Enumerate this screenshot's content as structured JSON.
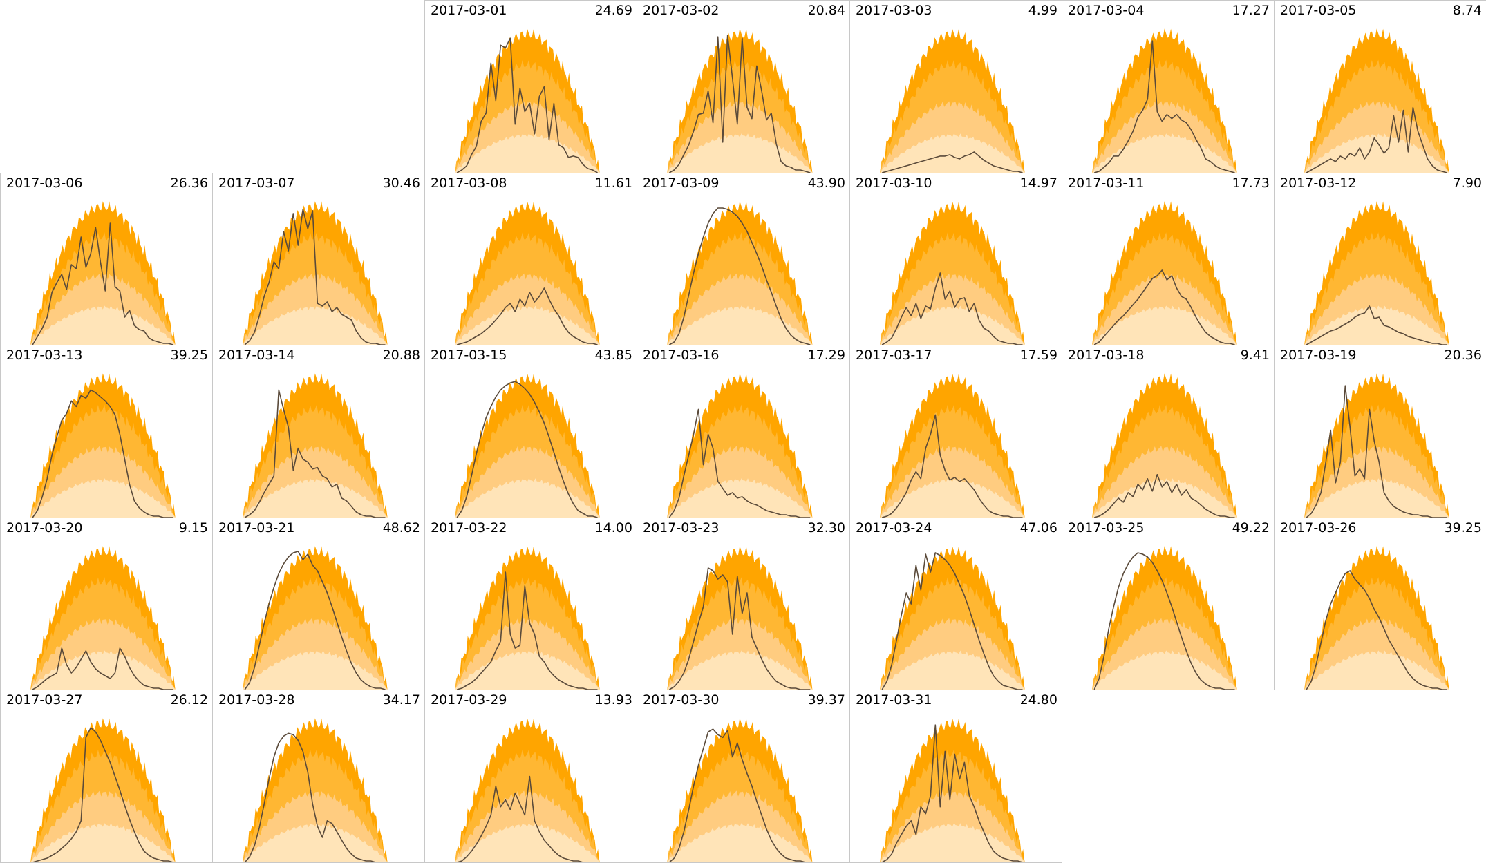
{
  "chart_data": {
    "type": "area",
    "layout": "calendar-small-multiples",
    "weekday_columns": 7,
    "month": "2017-03",
    "band_colors": [
      "#ffa500",
      "#ffb733",
      "#ffcc80",
      "#ffe4b8"
    ],
    "line_color": "#5a4a3a",
    "days": [
      {
        "date": "2017-03-01",
        "value": "24.69",
        "col": 2,
        "row": 0,
        "profile": [
          0,
          0.02,
          0.05,
          0.13,
          0.19,
          0.37,
          0.43,
          0.79,
          0.52,
          0.92,
          0.9,
          0.97,
          0.35,
          0.61,
          0.44,
          0.5,
          0.28,
          0.55,
          0.62,
          0.24,
          0.5,
          0.2,
          0.18,
          0.11,
          0.12,
          0.11,
          0.06,
          0.03,
          0.02,
          0
        ]
      },
      {
        "date": "2017-03-02",
        "value": "20.84",
        "col": 3,
        "row": 0,
        "profile": [
          0,
          0.02,
          0.06,
          0.13,
          0.2,
          0.3,
          0.42,
          0.43,
          0.59,
          0.36,
          0.98,
          0.22,
          0.99,
          0.68,
          0.35,
          0.97,
          0.47,
          0.39,
          0.77,
          0.59,
          0.38,
          0.43,
          0.21,
          0.08,
          0.05,
          0.04,
          0.02,
          0.02,
          0.01,
          0
        ]
      },
      {
        "date": "2017-03-03",
        "value": "4.99",
        "col": 4,
        "row": 0,
        "profile": [
          0,
          0.01,
          0.02,
          0.03,
          0.04,
          0.05,
          0.06,
          0.07,
          0.08,
          0.09,
          0.1,
          0.11,
          0.12,
          0.12,
          0.13,
          0.11,
          0.1,
          0.12,
          0.13,
          0.15,
          0.12,
          0.09,
          0.07,
          0.05,
          0.04,
          0.03,
          0.02,
          0.01,
          0.01,
          0
        ]
      },
      {
        "date": "2017-03-04",
        "value": "17.27",
        "col": 5,
        "row": 0,
        "profile": [
          0,
          0.01,
          0.04,
          0.07,
          0.12,
          0.12,
          0.17,
          0.23,
          0.3,
          0.4,
          0.45,
          0.53,
          0.95,
          0.44,
          0.37,
          0.42,
          0.39,
          0.42,
          0.38,
          0.36,
          0.31,
          0.24,
          0.18,
          0.1,
          0.08,
          0.05,
          0.03,
          0.02,
          0.01,
          0
        ]
      },
      {
        "date": "2017-03-05",
        "value": "8.74",
        "col": 6,
        "row": 0,
        "profile": [
          0,
          0.02,
          0.04,
          0.06,
          0.08,
          0.1,
          0.08,
          0.12,
          0.1,
          0.14,
          0.12,
          0.18,
          0.1,
          0.15,
          0.25,
          0.2,
          0.14,
          0.18,
          0.41,
          0.22,
          0.45,
          0.15,
          0.47,
          0.3,
          0.2,
          0.1,
          0.05,
          0.02,
          0.01,
          0
        ]
      },
      {
        "date": "2017-03-06",
        "value": "26.36",
        "col": 0,
        "row": 1,
        "profile": [
          0,
          0.06,
          0.12,
          0.2,
          0.38,
          0.45,
          0.51,
          0.4,
          0.58,
          0.55,
          0.78,
          0.56,
          0.66,
          0.85,
          0.6,
          0.39,
          0.88,
          0.42,
          0.39,
          0.2,
          0.25,
          0.14,
          0.11,
          0.1,
          0.05,
          0.03,
          0.02,
          0.01,
          0.01,
          0
        ]
      },
      {
        "date": "2017-03-07",
        "value": "30.46",
        "col": 1,
        "row": 1,
        "profile": [
          0,
          0.03,
          0.09,
          0.21,
          0.35,
          0.45,
          0.6,
          0.55,
          0.82,
          0.68,
          0.95,
          0.72,
          0.98,
          0.84,
          0.97,
          0.3,
          0.28,
          0.31,
          0.24,
          0.27,
          0.22,
          0.2,
          0.18,
          0.1,
          0.05,
          0.02,
          0.01,
          0.01,
          0,
          0
        ]
      },
      {
        "date": "2017-03-08",
        "value": "11.61",
        "col": 2,
        "row": 1,
        "profile": [
          0,
          0.01,
          0.02,
          0.04,
          0.06,
          0.08,
          0.11,
          0.14,
          0.18,
          0.22,
          0.27,
          0.3,
          0.24,
          0.33,
          0.28,
          0.38,
          0.31,
          0.35,
          0.41,
          0.33,
          0.26,
          0.21,
          0.14,
          0.09,
          0.06,
          0.04,
          0.02,
          0.01,
          0.01,
          0
        ]
      },
      {
        "date": "2017-03-09",
        "value": "43.90",
        "col": 3,
        "row": 1,
        "profile": [
          0,
          0.02,
          0.08,
          0.2,
          0.36,
          0.52,
          0.66,
          0.78,
          0.88,
          0.95,
          0.99,
          0.99,
          0.98,
          0.96,
          0.93,
          0.88,
          0.82,
          0.74,
          0.66,
          0.57,
          0.47,
          0.38,
          0.28,
          0.19,
          0.12,
          0.07,
          0.04,
          0.02,
          0.01,
          0
        ]
      },
      {
        "date": "2017-03-10",
        "value": "14.97",
        "col": 4,
        "row": 1,
        "profile": [
          0,
          0.02,
          0.05,
          0.12,
          0.2,
          0.27,
          0.21,
          0.3,
          0.19,
          0.28,
          0.26,
          0.41,
          0.52,
          0.33,
          0.39,
          0.27,
          0.33,
          0.34,
          0.24,
          0.3,
          0.18,
          0.12,
          0.1,
          0.06,
          0.03,
          0.02,
          0.01,
          0.01,
          0,
          0
        ]
      },
      {
        "date": "2017-03-11",
        "value": "17.73",
        "col": 5,
        "row": 1,
        "profile": [
          0,
          0.02,
          0.06,
          0.1,
          0.14,
          0.18,
          0.21,
          0.25,
          0.29,
          0.33,
          0.38,
          0.43,
          0.48,
          0.5,
          0.54,
          0.47,
          0.5,
          0.41,
          0.35,
          0.33,
          0.27,
          0.2,
          0.14,
          0.09,
          0.06,
          0.04,
          0.02,
          0.01,
          0.01,
          0
        ]
      },
      {
        "date": "2017-03-12",
        "value": "7.90",
        "col": 6,
        "row": 1,
        "profile": [
          0,
          0.02,
          0.04,
          0.06,
          0.08,
          0.1,
          0.11,
          0.13,
          0.15,
          0.17,
          0.2,
          0.22,
          0.23,
          0.28,
          0.19,
          0.2,
          0.14,
          0.13,
          0.11,
          0.09,
          0.08,
          0.06,
          0.05,
          0.04,
          0.03,
          0.02,
          0.01,
          0.01,
          0,
          0
        ]
      },
      {
        "date": "2017-03-13",
        "value": "39.25",
        "col": 0,
        "row": 2,
        "profile": [
          0,
          0.05,
          0.15,
          0.28,
          0.45,
          0.58,
          0.7,
          0.75,
          0.84,
          0.8,
          0.88,
          0.86,
          0.92,
          0.9,
          0.87,
          0.84,
          0.8,
          0.74,
          0.6,
          0.42,
          0.24,
          0.12,
          0.07,
          0.04,
          0.02,
          0.01,
          0.01,
          0,
          0,
          0
        ]
      },
      {
        "date": "2017-03-14",
        "value": "20.88",
        "col": 1,
        "row": 2,
        "profile": [
          0,
          0.02,
          0.05,
          0.11,
          0.18,
          0.24,
          0.3,
          0.92,
          0.78,
          0.65,
          0.34,
          0.5,
          0.42,
          0.4,
          0.35,
          0.36,
          0.3,
          0.28,
          0.22,
          0.24,
          0.14,
          0.12,
          0.08,
          0.04,
          0.02,
          0.01,
          0.01,
          0,
          0,
          0
        ]
      },
      {
        "date": "2017-03-15",
        "value": "43.85",
        "col": 2,
        "row": 2,
        "profile": [
          0,
          0.05,
          0.15,
          0.3,
          0.46,
          0.6,
          0.72,
          0.8,
          0.87,
          0.92,
          0.95,
          0.97,
          0.98,
          0.96,
          0.93,
          0.89,
          0.83,
          0.76,
          0.68,
          0.58,
          0.47,
          0.36,
          0.26,
          0.17,
          0.1,
          0.05,
          0.03,
          0.01,
          0.01,
          0
        ]
      },
      {
        "date": "2017-03-16",
        "value": "17.29",
        "col": 3,
        "row": 2,
        "profile": [
          0,
          0.05,
          0.14,
          0.3,
          0.45,
          0.6,
          0.78,
          0.38,
          0.6,
          0.5,
          0.26,
          0.21,
          0.16,
          0.18,
          0.14,
          0.15,
          0.12,
          0.1,
          0.09,
          0.07,
          0.05,
          0.04,
          0.03,
          0.02,
          0.02,
          0.01,
          0.01,
          0,
          0,
          0
        ]
      },
      {
        "date": "2017-03-17",
        "value": "17.59",
        "col": 4,
        "row": 2,
        "profile": [
          0,
          0.01,
          0.03,
          0.07,
          0.12,
          0.18,
          0.27,
          0.33,
          0.28,
          0.5,
          0.6,
          0.74,
          0.45,
          0.34,
          0.27,
          0.29,
          0.26,
          0.28,
          0.24,
          0.2,
          0.14,
          0.09,
          0.05,
          0.03,
          0.02,
          0.01,
          0.01,
          0,
          0,
          0
        ]
      },
      {
        "date": "2017-03-18",
        "value": "9.41",
        "col": 5,
        "row": 2,
        "profile": [
          0,
          0.01,
          0.03,
          0.06,
          0.1,
          0.14,
          0.11,
          0.18,
          0.15,
          0.24,
          0.2,
          0.28,
          0.19,
          0.31,
          0.22,
          0.26,
          0.18,
          0.24,
          0.16,
          0.2,
          0.14,
          0.12,
          0.09,
          0.06,
          0.04,
          0.02,
          0.01,
          0.01,
          0,
          0
        ]
      },
      {
        "date": "2017-03-19",
        "value": "20.36",
        "col": 6,
        "row": 2,
        "profile": [
          0,
          0.03,
          0.09,
          0.18,
          0.4,
          0.63,
          0.25,
          0.4,
          0.95,
          0.65,
          0.3,
          0.35,
          0.28,
          0.78,
          0.55,
          0.4,
          0.18,
          0.12,
          0.08,
          0.06,
          0.04,
          0.03,
          0.02,
          0.02,
          0.01,
          0.01,
          0,
          0,
          0,
          0
        ]
      },
      {
        "date": "2017-03-20",
        "value": "9.15",
        "col": 0,
        "row": 3,
        "profile": [
          0,
          0.02,
          0.05,
          0.08,
          0.1,
          0.12,
          0.3,
          0.18,
          0.12,
          0.16,
          0.22,
          0.28,
          0.2,
          0.15,
          0.12,
          0.1,
          0.08,
          0.12,
          0.3,
          0.24,
          0.16,
          0.1,
          0.06,
          0.03,
          0.02,
          0.01,
          0.01,
          0,
          0,
          0
        ]
      },
      {
        "date": "2017-03-21",
        "value": "48.62",
        "col": 1,
        "row": 3,
        "profile": [
          0,
          0.05,
          0.16,
          0.32,
          0.48,
          0.62,
          0.74,
          0.84,
          0.91,
          0.96,
          0.99,
          1.0,
          0.94,
          0.98,
          0.9,
          0.86,
          0.78,
          0.7,
          0.6,
          0.49,
          0.38,
          0.28,
          0.19,
          0.12,
          0.07,
          0.04,
          0.02,
          0.01,
          0.01,
          0
        ]
      },
      {
        "date": "2017-03-22",
        "value": "14.00",
        "col": 2,
        "row": 3,
        "profile": [
          0,
          0.01,
          0.03,
          0.05,
          0.08,
          0.12,
          0.16,
          0.2,
          0.28,
          0.35,
          0.85,
          0.4,
          0.3,
          0.32,
          0.75,
          0.48,
          0.4,
          0.24,
          0.2,
          0.14,
          0.1,
          0.07,
          0.05,
          0.03,
          0.02,
          0.01,
          0.01,
          0,
          0,
          0
        ]
      },
      {
        "date": "2017-03-23",
        "value": "32.30",
        "col": 3,
        "row": 3,
        "profile": [
          0,
          0.02,
          0.06,
          0.12,
          0.22,
          0.35,
          0.48,
          0.6,
          0.88,
          0.86,
          0.8,
          0.83,
          0.78,
          0.4,
          0.82,
          0.55,
          0.7,
          0.38,
          0.3,
          0.22,
          0.15,
          0.1,
          0.06,
          0.04,
          0.02,
          0.01,
          0.01,
          0,
          0,
          0
        ]
      },
      {
        "date": "2017-03-24",
        "value": "47.06",
        "col": 4,
        "row": 3,
        "profile": [
          0,
          0.06,
          0.18,
          0.36,
          0.54,
          0.7,
          0.62,
          0.9,
          0.72,
          0.98,
          0.85,
          0.99,
          0.97,
          0.94,
          0.9,
          0.84,
          0.76,
          0.68,
          0.58,
          0.47,
          0.36,
          0.26,
          0.17,
          0.1,
          0.06,
          0.03,
          0.02,
          0.01,
          0,
          0
        ]
      },
      {
        "date": "2017-03-25",
        "value": "49.22",
        "col": 5,
        "row": 3,
        "profile": [
          0,
          0.08,
          0.24,
          0.44,
          0.6,
          0.74,
          0.84,
          0.91,
          0.96,
          0.99,
          0.98,
          0.96,
          0.92,
          0.86,
          0.79,
          0.7,
          0.6,
          0.49,
          0.38,
          0.28,
          0.19,
          0.12,
          0.07,
          0.04,
          0.02,
          0.01,
          0.01,
          0,
          0,
          0
        ]
      },
      {
        "date": "2017-03-26",
        "value": "39.25",
        "col": 6,
        "row": 3,
        "profile": [
          0,
          0.06,
          0.18,
          0.34,
          0.5,
          0.62,
          0.7,
          0.78,
          0.84,
          0.86,
          0.8,
          0.76,
          0.72,
          0.66,
          0.58,
          0.52,
          0.44,
          0.36,
          0.3,
          0.24,
          0.18,
          0.12,
          0.08,
          0.05,
          0.03,
          0.02,
          0.01,
          0.01,
          0,
          0
        ]
      },
      {
        "date": "2017-03-27",
        "value": "26.12",
        "col": 0,
        "row": 4,
        "profile": [
          0,
          0.01,
          0.02,
          0.03,
          0.05,
          0.07,
          0.1,
          0.13,
          0.17,
          0.22,
          0.3,
          0.9,
          0.97,
          0.94,
          0.88,
          0.8,
          0.72,
          0.62,
          0.52,
          0.41,
          0.31,
          0.22,
          0.14,
          0.08,
          0.05,
          0.03,
          0.02,
          0.01,
          0.01,
          0
        ]
      },
      {
        "date": "2017-03-28",
        "value": "34.17",
        "col": 1,
        "row": 4,
        "profile": [
          0,
          0.04,
          0.12,
          0.25,
          0.42,
          0.6,
          0.76,
          0.86,
          0.91,
          0.93,
          0.92,
          0.88,
          0.8,
          0.65,
          0.42,
          0.26,
          0.18,
          0.3,
          0.28,
          0.22,
          0.16,
          0.1,
          0.06,
          0.03,
          0.02,
          0.01,
          0.01,
          0,
          0,
          0
        ]
      },
      {
        "date": "2017-03-29",
        "value": "13.93",
        "col": 2,
        "row": 4,
        "profile": [
          0,
          0.01,
          0.04,
          0.08,
          0.13,
          0.19,
          0.26,
          0.34,
          0.55,
          0.4,
          0.45,
          0.38,
          0.5,
          0.42,
          0.34,
          0.62,
          0.3,
          0.22,
          0.16,
          0.12,
          0.08,
          0.05,
          0.03,
          0.02,
          0.01,
          0.01,
          0,
          0,
          0,
          0
        ]
      },
      {
        "date": "2017-03-30",
        "value": "39.37",
        "col": 3,
        "row": 4,
        "profile": [
          0,
          0.03,
          0.1,
          0.22,
          0.38,
          0.55,
          0.7,
          0.82,
          0.94,
          0.96,
          0.92,
          0.9,
          0.95,
          0.76,
          0.86,
          0.74,
          0.64,
          0.55,
          0.44,
          0.34,
          0.24,
          0.16,
          0.1,
          0.06,
          0.03,
          0.02,
          0.01,
          0.01,
          0,
          0
        ]
      },
      {
        "date": "2017-03-31",
        "value": "24.80",
        "col": 4,
        "row": 4,
        "profile": [
          0,
          0.02,
          0.06,
          0.14,
          0.2,
          0.26,
          0.3,
          0.2,
          0.4,
          0.35,
          0.48,
          0.99,
          0.4,
          0.8,
          0.45,
          0.78,
          0.6,
          0.72,
          0.48,
          0.4,
          0.3,
          0.22,
          0.14,
          0.08,
          0.05,
          0.03,
          0.02,
          0.01,
          0.01,
          0
        ]
      }
    ]
  }
}
